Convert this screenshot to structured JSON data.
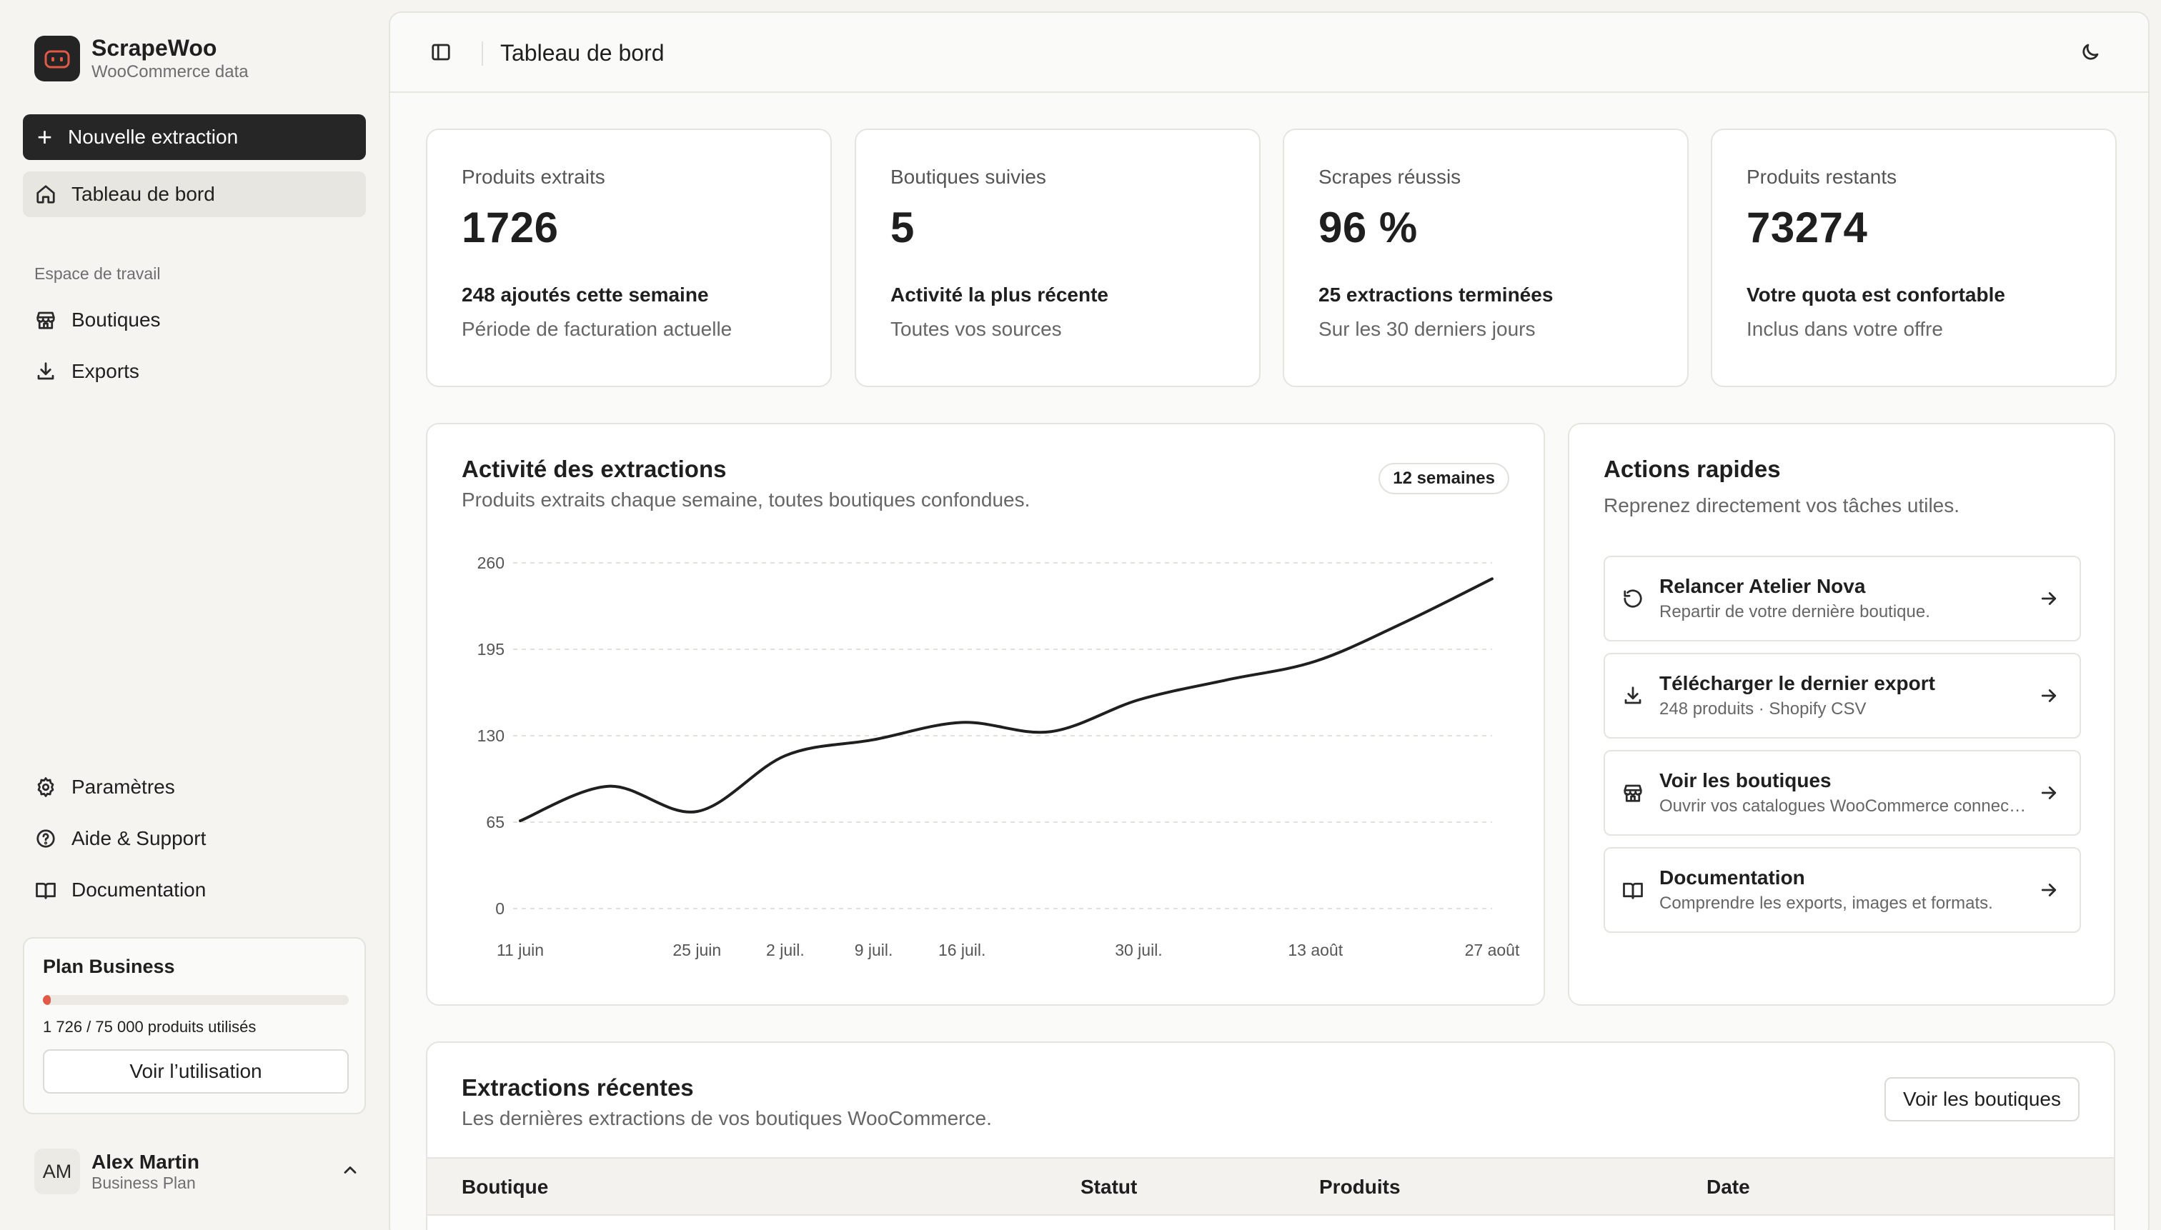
{
  "brand": {
    "name": "ScrapeWoo",
    "subtitle": "WooCommerce data",
    "logo_icon": "robot-face-icon"
  },
  "sidebar": {
    "new_button": "Nouvelle extraction",
    "dashboard": "Tableau de bord",
    "workspace_label": "Espace de travail",
    "workspace_items": [
      {
        "label": "Boutiques",
        "icon": "store-icon"
      },
      {
        "label": "Exports",
        "icon": "download-icon"
      }
    ],
    "bottom_items": [
      {
        "label": "Paramètres",
        "icon": "gear-icon"
      },
      {
        "label": "Aide & Support",
        "icon": "help-circle-icon"
      },
      {
        "label": "Documentation",
        "icon": "book-icon"
      }
    ],
    "plan": {
      "title": "Plan Business",
      "usage_text": "1 726 / 75 000 produits utilisés",
      "usage_fraction": 0.023,
      "button": "Voir l’utilisation",
      "bar_color": "#e05a47"
    },
    "user": {
      "initials": "AM",
      "name": "Alex Martin",
      "plan": "Business Plan"
    }
  },
  "header": {
    "title": "Tableau de bord"
  },
  "stats": [
    {
      "label": "Produits extraits",
      "value": "1726",
      "line1": "248 ajoutés cette semaine",
      "line2": "Période de facturation actuelle"
    },
    {
      "label": "Boutiques suivies",
      "value": "5",
      "line1": "Activité la plus récente",
      "line2": "Toutes vos sources"
    },
    {
      "label": "Scrapes réussis",
      "value": "96 %",
      "line1": "25 extractions terminées",
      "line2": "Sur les 30 derniers jours"
    },
    {
      "label": "Produits restants",
      "value": "73274",
      "line1": "Votre quota est confortable",
      "line2": "Inclus dans votre offre"
    }
  ],
  "activity": {
    "title": "Activité des extractions",
    "subtitle": "Produits extraits chaque semaine, toutes boutiques confondues.",
    "badge": "12 semaines"
  },
  "chart_data": {
    "type": "line",
    "x": [
      "11 juin",
      "18 juin",
      "25 juin",
      "2 juil.",
      "9 juil.",
      "16 juil.",
      "23 juil.",
      "30 juil.",
      "6 août",
      "13 août",
      "20 août",
      "27 août"
    ],
    "x_tick_labels": [
      "11 juin",
      "25 juin",
      "2 juil.",
      "9 juil.",
      "16 juil.",
      "30 juil.",
      "13 août",
      "27 août"
    ],
    "series": [
      {
        "values": [
          66,
          92,
          73,
          115,
          127,
          140,
          133,
          157,
          172,
          186,
          215,
          248
        ]
      }
    ],
    "yticks": [
      0,
      65,
      130,
      195,
      260
    ],
    "ylim": [
      0,
      260
    ],
    "grid": true,
    "line_color": "#1f1f1f"
  },
  "quick_actions": {
    "title": "Actions rapides",
    "subtitle": "Reprenez directement vos tâches utiles.",
    "items": [
      {
        "title": "Relancer Atelier Nova",
        "sub": "Repartir de votre dernière boutique.",
        "icon": "rotate-ccw-icon"
      },
      {
        "title": "Télécharger le dernier export",
        "sub": "248 produits · Shopify CSV",
        "icon": "download-icon"
      },
      {
        "title": "Voir les boutiques",
        "sub": "Ouvrir vos catalogues WooCommerce connectés.",
        "icon": "store-icon"
      },
      {
        "title": "Documentation",
        "sub": "Comprendre les exports, images et formats.",
        "icon": "book-icon"
      }
    ]
  },
  "recent": {
    "title": "Extractions récentes",
    "subtitle": "Les dernières extractions de vos boutiques WooCommerce.",
    "button": "Voir les boutiques",
    "columns": [
      "Boutique",
      "Statut",
      "Produits",
      "Date"
    ]
  }
}
